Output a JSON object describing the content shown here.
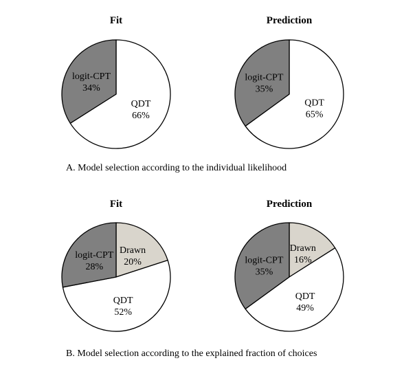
{
  "colors": {
    "qdt": "#ffffff",
    "logit_cpt": "#808080",
    "drawn": "#d9d5cc",
    "stroke": "#000000"
  },
  "captions": {
    "a": "A. Model selection according to the individual likelihood",
    "b": "B. Model selection according to the explained fraction of choices"
  },
  "chart_data": [
    {
      "type": "pie",
      "panel": "A",
      "title": "Fit",
      "slices": [
        {
          "label": "QDT",
          "value": 66,
          "value_label": "66%",
          "color_key": "qdt"
        },
        {
          "label": "logit-CPT",
          "value": 34,
          "value_label": "34%",
          "color_key": "logit_cpt"
        }
      ]
    },
    {
      "type": "pie",
      "panel": "A",
      "title": "Prediction",
      "slices": [
        {
          "label": "QDT",
          "value": 65,
          "value_label": "65%",
          "color_key": "qdt"
        },
        {
          "label": "logit-CPT",
          "value": 35,
          "value_label": "35%",
          "color_key": "logit_cpt"
        }
      ]
    },
    {
      "type": "pie",
      "panel": "B",
      "title": "Fit",
      "slices": [
        {
          "label": "Drawn",
          "value": 20,
          "value_label": "20%",
          "color_key": "drawn"
        },
        {
          "label": "QDT",
          "value": 52,
          "value_label": "52%",
          "color_key": "qdt"
        },
        {
          "label": "logit-CPT",
          "value": 28,
          "value_label": "28%",
          "color_key": "logit_cpt"
        }
      ]
    },
    {
      "type": "pie",
      "panel": "B",
      "title": "Prediction",
      "slices": [
        {
          "label": "Drawn",
          "value": 16,
          "value_label": "16%",
          "color_key": "drawn"
        },
        {
          "label": "QDT",
          "value": 49,
          "value_label": "49%",
          "color_key": "qdt"
        },
        {
          "label": "logit-CPT",
          "value": 35,
          "value_label": "35%",
          "color_key": "logit_cpt"
        }
      ]
    }
  ]
}
